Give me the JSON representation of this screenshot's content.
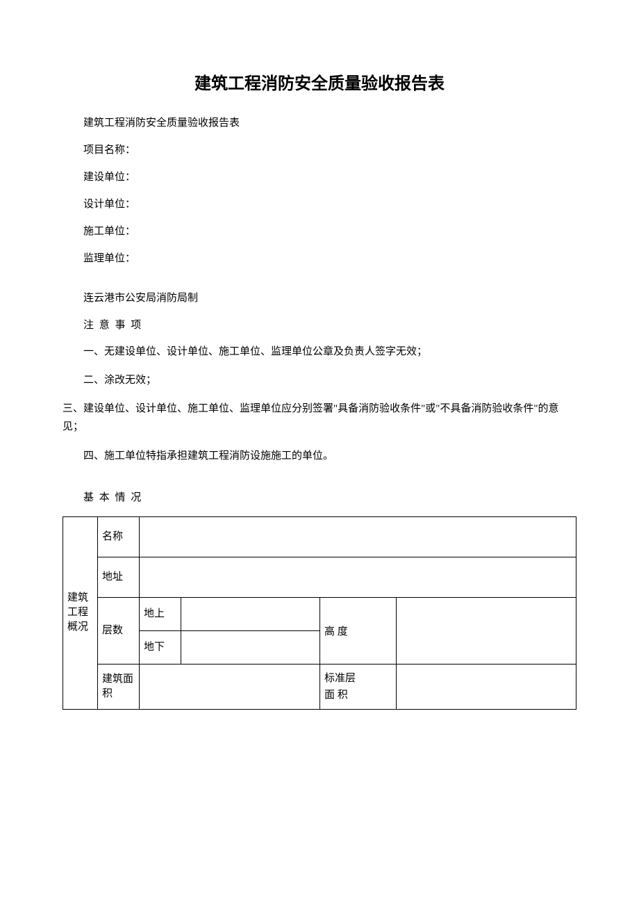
{
  "title": "建筑工程消防安全质量验收报告表",
  "subtitle": "建筑工程消防安全质量验收报告表",
  "fields": {
    "project_name_label": "项目名称：",
    "construction_unit_label": "建设单位：",
    "design_unit_label": "设计单位：",
    "builder_unit_label": "施工单位：",
    "supervision_unit_label": "监理单位："
  },
  "issuer": "连云港市公安局消防局制",
  "notes_heading": "注 意 事 项",
  "notes": {
    "n1": "一、无建设单位、设计单位、施工单位、监理单位公章及负责人签字无效；",
    "n2": "二、涂改无效；",
    "n3": "三、建设单位、设计单位、施工单位、监理单位应分别签署\"具备消防验收条件\"或\"不具备消防验收条件\"的意见；",
    "n4": "四、施工单位特指承担建筑工程消防设施施工的单位。"
  },
  "basic_info_heading": "基 本 情 况",
  "table": {
    "overview_label": "建筑工程概况",
    "name_label": "名称",
    "address_label": "地址",
    "floors_label": "层数",
    "above_ground_label": "地上",
    "below_ground_label": "地下",
    "height_label": "高 度",
    "building_area_label": "建筑面积",
    "standard_floor_area_label_l1": "标准层",
    "standard_floor_area_label_l2": "面 积",
    "name_value": "",
    "address_value": "",
    "above_ground_value": "",
    "below_ground_value": "",
    "height_value": "",
    "building_area_value": "",
    "standard_floor_area_value": ""
  },
  "colors": {
    "text": "#000000",
    "background": "#ffffff",
    "border": "#000000"
  }
}
